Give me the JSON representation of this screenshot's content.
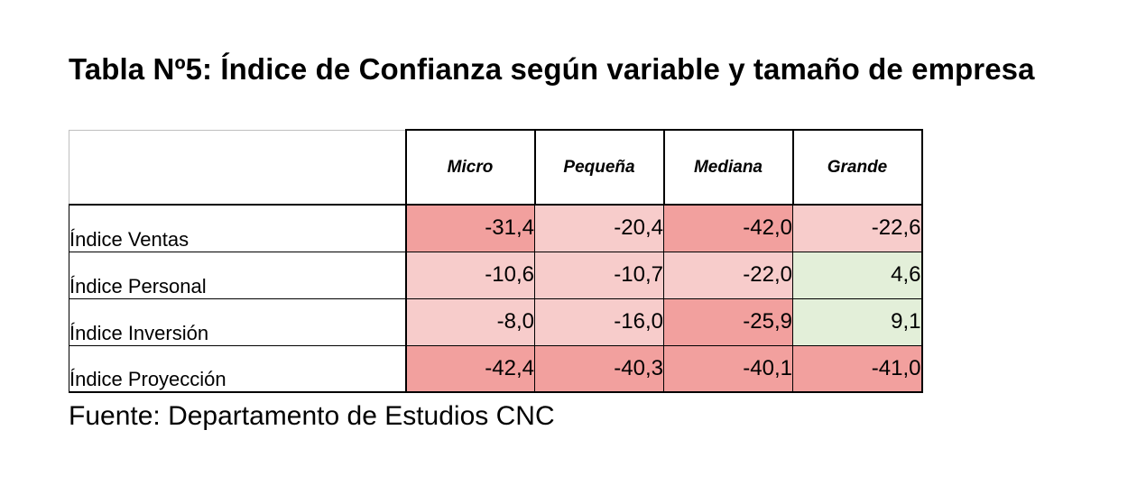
{
  "title": "Tabla Nº5: Índice de Confianza según variable y tamaño de empresa",
  "table": {
    "columns": [
      "Micro",
      "Pequeña",
      "Mediana",
      "Grande"
    ],
    "rows": [
      {
        "label": "Índice Ventas",
        "values": [
          "-31,4",
          "-20,4",
          "-42,0",
          "-22,6"
        ],
        "colors": [
          "#f2a09e",
          "#f7cccb",
          "#f2a09e",
          "#f7cccb"
        ]
      },
      {
        "label": "Índice Personal",
        "values": [
          "-10,6",
          "-10,7",
          "-22,0",
          "4,6"
        ],
        "colors": [
          "#f7cccb",
          "#f7cccb",
          "#f7cccb",
          "#e3efd9"
        ]
      },
      {
        "label": "Índice Inversión",
        "values": [
          "-8,0",
          "-16,0",
          "-25,9",
          "9,1"
        ],
        "colors": [
          "#f7cccb",
          "#f7cccb",
          "#f2a09e",
          "#e3efd9"
        ]
      },
      {
        "label": "Índice Proyección",
        "values": [
          "-42,4",
          "-40,3",
          "-40,1",
          "-41,0"
        ],
        "colors": [
          "#f2a09e",
          "#f2a09e",
          "#f2a09e",
          "#f2a09e"
        ]
      }
    ]
  },
  "source": "Fuente: Departamento de Estudios CNC"
}
